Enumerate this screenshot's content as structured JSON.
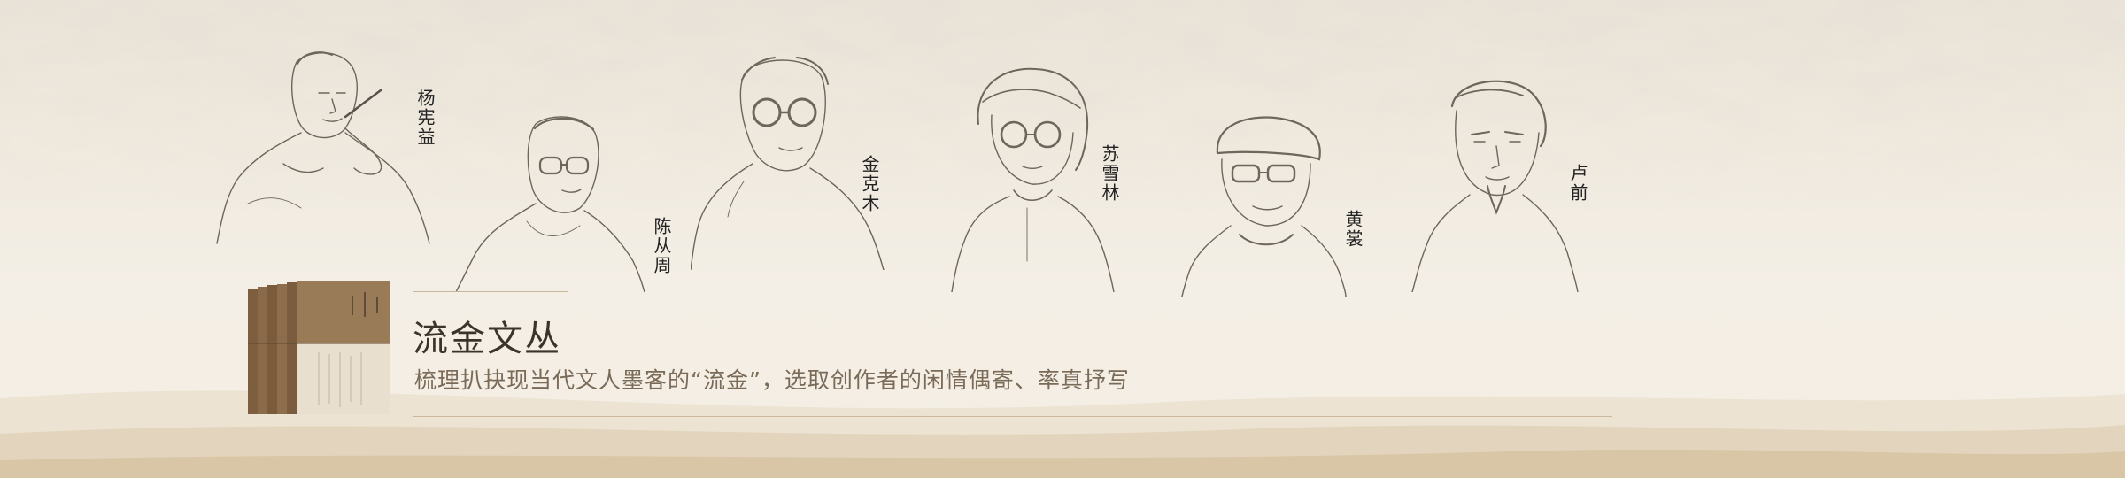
{
  "authors": [
    {
      "name": "杨宪益"
    },
    {
      "name": "陈从周"
    },
    {
      "name": "金克木"
    },
    {
      "name": "苏雪林"
    },
    {
      "name": "黄裳"
    },
    {
      "name": "卢前"
    }
  ],
  "series": {
    "title": "流金文丛",
    "tagline": "梳理扒抉现当代文人墨客的“流金”，选取创作者的闲情偶寄、率真抒写"
  },
  "colors": {
    "background": "#f3ede3",
    "title_text": "#3b342c",
    "tagline_text": "#7a6a58",
    "book_spine": "#8a6a48",
    "rule": "#cbb99f"
  }
}
